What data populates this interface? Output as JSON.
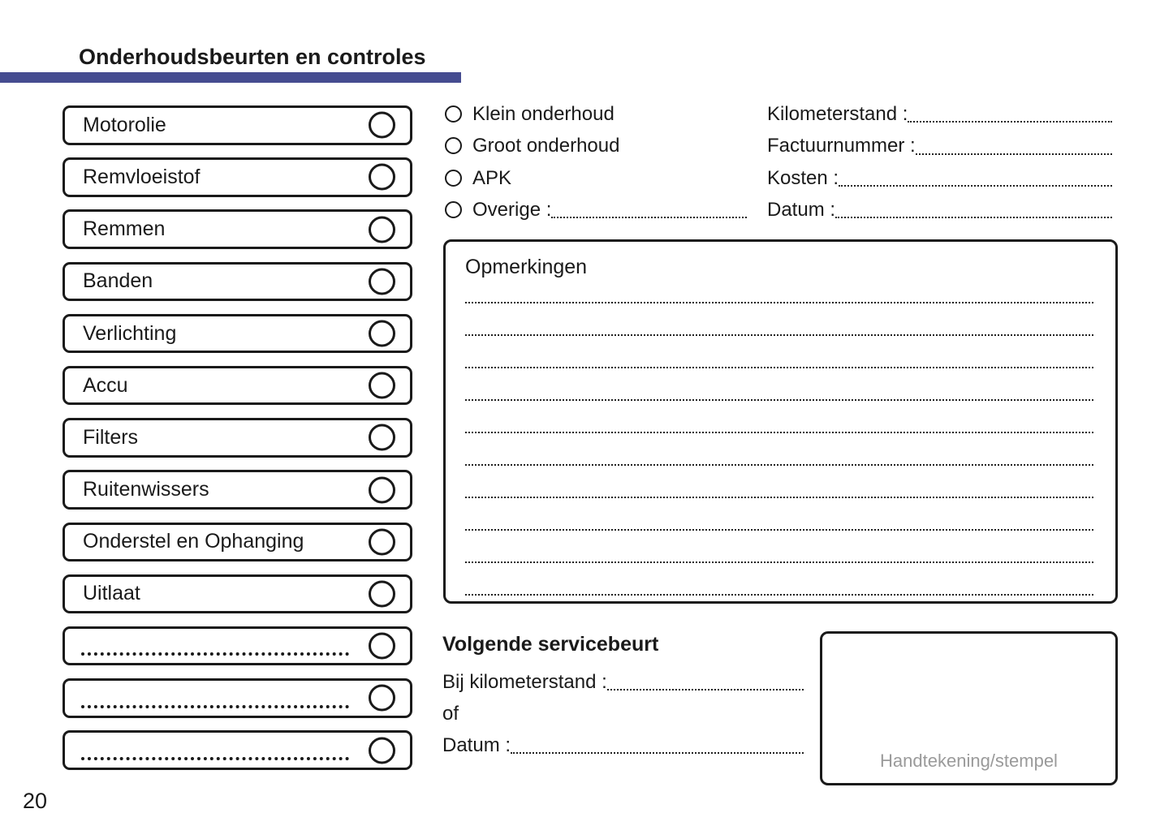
{
  "page": {
    "title": "Onderhoudsbeurten en controles",
    "number": "20",
    "accent_color": "#454c90",
    "signature_text_color": "#9a9a9a"
  },
  "checklist": {
    "items": [
      "Motorolie",
      "Remvloeistof",
      "Remmen",
      "Banden",
      "Verlichting",
      "Accu",
      "Filters",
      "Ruitenwissers",
      "Onderstel en Ophanging",
      "Uitlaat"
    ],
    "blank_write_in_rows": 3
  },
  "service_type": {
    "options": [
      "Klein onderhoud",
      "Groot onderhoud",
      "APK"
    ],
    "other_label": "Overige :"
  },
  "invoice_fields": [
    "Kilometerstand :",
    "Factuurnummer :",
    "Kosten :",
    "Datum :"
  ],
  "remarks": {
    "title": "Opmerkingen",
    "line_count": 10
  },
  "next_service": {
    "title": "Volgende servicebeurt",
    "km_label": "Bij kilometerstand :",
    "or_label": "of",
    "date_label": "Datum :"
  },
  "signature": {
    "label": "Handtekening/stempel"
  }
}
